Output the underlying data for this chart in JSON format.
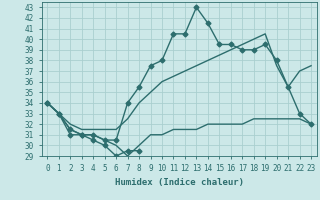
{
  "xlabel": "Humidex (Indice chaleur)",
  "ylabel": "",
  "xlim": [
    -0.5,
    23.5
  ],
  "ylim": [
    29,
    43.5
  ],
  "xticks": [
    0,
    1,
    2,
    3,
    4,
    5,
    6,
    7,
    8,
    9,
    10,
    11,
    12,
    13,
    14,
    15,
    16,
    17,
    18,
    19,
    20,
    21,
    22,
    23
  ],
  "yticks": [
    29,
    30,
    31,
    32,
    33,
    34,
    35,
    36,
    37,
    38,
    39,
    40,
    41,
    42,
    43
  ],
  "bg_color": "#cce8e8",
  "grid_color": "#aacfcf",
  "line_color": "#2d6e6e",
  "lines": [
    {
      "x": [
        0,
        1,
        2,
        3,
        4,
        5,
        6,
        7,
        8
      ],
      "y": [
        34,
        33,
        31,
        31,
        30.5,
        30,
        29,
        29.5,
        29.5
      ],
      "marker": "D",
      "markersize": 2.5,
      "lw": 1.0
    },
    {
      "x": [
        0,
        1,
        2,
        3,
        4,
        5,
        6,
        7,
        8,
        9,
        10,
        11,
        12,
        13,
        14,
        15,
        16,
        17,
        18,
        19,
        20,
        21,
        22,
        23
      ],
      "y": [
        34,
        33,
        31.5,
        31,
        31,
        30.5,
        30,
        29,
        30,
        31,
        31,
        31.5,
        31.5,
        31.5,
        32,
        32,
        32,
        32,
        32.5,
        32.5,
        32.5,
        32.5,
        32.5,
        32
      ],
      "marker": null,
      "markersize": 0,
      "lw": 1.0
    },
    {
      "x": [
        0,
        1,
        2,
        3,
        4,
        5,
        6,
        7,
        8,
        9,
        10,
        11,
        12,
        13,
        14,
        15,
        16,
        17,
        18,
        19,
        20,
        21,
        22,
        23
      ],
      "y": [
        34,
        33,
        31.5,
        31,
        31,
        30.5,
        30.5,
        34,
        35.5,
        37.5,
        38,
        40.5,
        40.5,
        43,
        41.5,
        39.5,
        39.5,
        39,
        39,
        39.5,
        38,
        35.5,
        33,
        32
      ],
      "marker": "D",
      "markersize": 2.5,
      "lw": 1.0
    },
    {
      "x": [
        0,
        2,
        3,
        4,
        5,
        6,
        7,
        8,
        9,
        10,
        11,
        12,
        13,
        14,
        15,
        16,
        17,
        18,
        19,
        20,
        21,
        22,
        23
      ],
      "y": [
        34,
        32,
        31.5,
        31.5,
        31.5,
        31.5,
        32.5,
        34,
        35,
        36,
        36.5,
        37,
        37.5,
        38,
        38.5,
        39,
        39.5,
        40,
        40.5,
        37.5,
        35.5,
        37,
        37.5
      ],
      "marker": null,
      "markersize": 0,
      "lw": 1.0
    }
  ]
}
